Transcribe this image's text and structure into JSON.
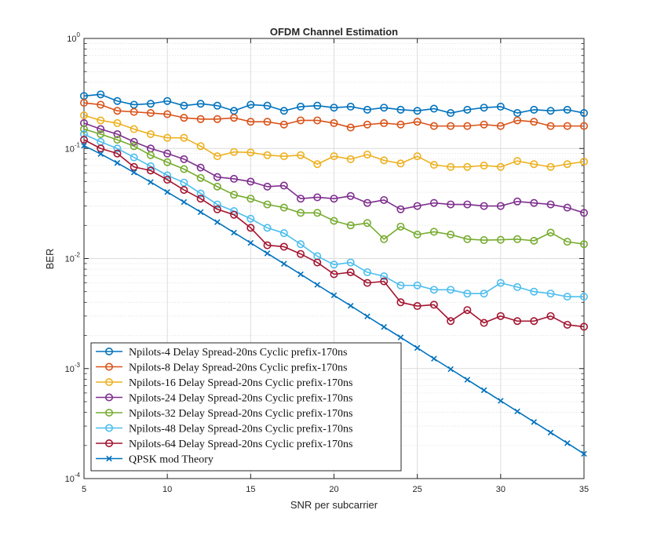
{
  "chart_data": {
    "type": "line",
    "title": "OFDM Channel Estimation",
    "xlabel": "SNR per subcarrier",
    "ylabel": "BER",
    "xlim": [
      5,
      35
    ],
    "ylim": [
      0.0001,
      1
    ],
    "yscale": "log",
    "grid": true,
    "minor_grid": true,
    "legend_position": "bottom-left",
    "x_ticks": [
      "5",
      "10",
      "15",
      "20",
      "25",
      "30",
      "35"
    ],
    "y_ticks": [
      {
        "base": "10",
        "exp": "0"
      },
      {
        "base": "10",
        "exp": "-1"
      },
      {
        "base": "10",
        "exp": "-2"
      },
      {
        "base": "10",
        "exp": "-3"
      },
      {
        "base": "10",
        "exp": "-4"
      }
    ],
    "x": [
      5,
      6,
      7,
      8,
      9,
      10,
      11,
      12,
      13,
      14,
      15,
      16,
      17,
      18,
      19,
      20,
      21,
      22,
      23,
      24,
      25,
      26,
      27,
      28,
      29,
      30,
      31,
      32,
      33,
      34,
      35
    ],
    "series": [
      {
        "name": "Npilots-4 Delay Spread-20ns Cyclic prefix-170ns",
        "color": "#0072BD",
        "marker": "circle",
        "values": [
          0.3,
          0.31,
          0.27,
          0.25,
          0.255,
          0.27,
          0.245,
          0.255,
          0.245,
          0.22,
          0.25,
          0.245,
          0.22,
          0.24,
          0.245,
          0.235,
          0.24,
          0.225,
          0.235,
          0.225,
          0.22,
          0.23,
          0.21,
          0.225,
          0.235,
          0.24,
          0.21,
          0.225,
          0.22,
          0.225,
          0.21
        ]
      },
      {
        "name": "Npilots-8 Delay Spread-20ns Cyclic prefix-170ns",
        "color": "#D95319",
        "marker": "circle",
        "values": [
          0.26,
          0.25,
          0.22,
          0.215,
          0.21,
          0.205,
          0.19,
          0.185,
          0.185,
          0.19,
          0.175,
          0.175,
          0.165,
          0.18,
          0.18,
          0.17,
          0.155,
          0.165,
          0.17,
          0.165,
          0.175,
          0.16,
          0.16,
          0.16,
          0.165,
          0.16,
          0.18,
          0.175,
          0.16,
          0.16,
          0.16
        ]
      },
      {
        "name": "Npilots-16 Delay Spread-20ns Cyclic prefix-170ns",
        "color": "#EDB120",
        "marker": "circle",
        "values": [
          0.2,
          0.18,
          0.17,
          0.15,
          0.135,
          0.125,
          0.125,
          0.105,
          0.085,
          0.093,
          0.092,
          0.087,
          0.085,
          0.087,
          0.072,
          0.085,
          0.08,
          0.088,
          0.078,
          0.073,
          0.085,
          0.071,
          0.068,
          0.068,
          0.07,
          0.068,
          0.077,
          0.072,
          0.068,
          0.072,
          0.076
        ]
      },
      {
        "name": "Npilots-24 Delay Spread-20ns Cyclic prefix-170ns",
        "color": "#7E2F8E",
        "marker": "circle",
        "values": [
          0.17,
          0.15,
          0.135,
          0.115,
          0.1,
          0.09,
          0.08,
          0.067,
          0.055,
          0.053,
          0.05,
          0.045,
          0.046,
          0.035,
          0.036,
          0.035,
          0.037,
          0.032,
          0.034,
          0.028,
          0.03,
          0.032,
          0.031,
          0.031,
          0.03,
          0.03,
          0.033,
          0.032,
          0.031,
          0.029,
          0.026
        ]
      },
      {
        "name": "Npilots-32 Delay Spread-20ns Cyclic prefix-170ns",
        "color": "#77AC30",
        "marker": "circle",
        "values": [
          0.15,
          0.135,
          0.12,
          0.105,
          0.087,
          0.075,
          0.065,
          0.054,
          0.045,
          0.038,
          0.035,
          0.031,
          0.029,
          0.026,
          0.026,
          0.022,
          0.02,
          0.021,
          0.015,
          0.0195,
          0.0165,
          0.0175,
          0.0165,
          0.015,
          0.0147,
          0.0148,
          0.015,
          0.0145,
          0.0172,
          0.0142,
          0.0135
        ]
      },
      {
        "name": "Npilots-48 Delay Spread-20ns Cyclic prefix-170ns",
        "color": "#4DBEEE",
        "marker": "circle",
        "values": [
          0.135,
          0.115,
          0.1,
          0.083,
          0.069,
          0.057,
          0.049,
          0.039,
          0.031,
          0.027,
          0.023,
          0.019,
          0.017,
          0.0135,
          0.0105,
          0.0088,
          0.0092,
          0.0075,
          0.0069,
          0.0057,
          0.0057,
          0.0052,
          0.0052,
          0.0048,
          0.0048,
          0.006,
          0.0055,
          0.005,
          0.0048,
          0.0045,
          0.0045
        ]
      },
      {
        "name": "Npilots-64 Delay Spread-20ns Cyclic prefix-170ns",
        "color": "#A2142F",
        "marker": "circle",
        "values": [
          0.12,
          0.1,
          0.09,
          0.068,
          0.063,
          0.052,
          0.042,
          0.035,
          0.028,
          0.025,
          0.019,
          0.0132,
          0.0128,
          0.011,
          0.0092,
          0.0072,
          0.0075,
          0.006,
          0.0062,
          0.004,
          0.0037,
          0.0038,
          0.0027,
          0.0034,
          0.0026,
          0.003,
          0.0027,
          0.0027,
          0.003,
          0.0025,
          0.0024
        ]
      },
      {
        "name": "QPSK mod Theory",
        "color": "#0072BD",
        "marker": "x",
        "values": [
          0.106,
          0.0892,
          0.0739,
          0.0606,
          0.0495,
          0.0402,
          0.0326,
          0.0264,
          0.0214,
          0.0172,
          0.01386,
          0.01114,
          0.00896,
          0.00719,
          0.00577,
          0.00463,
          0.00372,
          0.00298,
          0.00239,
          0.00192,
          0.00154,
          0.00123,
          0.000988,
          0.000792,
          0.000635,
          0.000509,
          0.000408,
          0.000327,
          0.000262,
          0.00021,
          0.000168
        ]
      }
    ]
  }
}
